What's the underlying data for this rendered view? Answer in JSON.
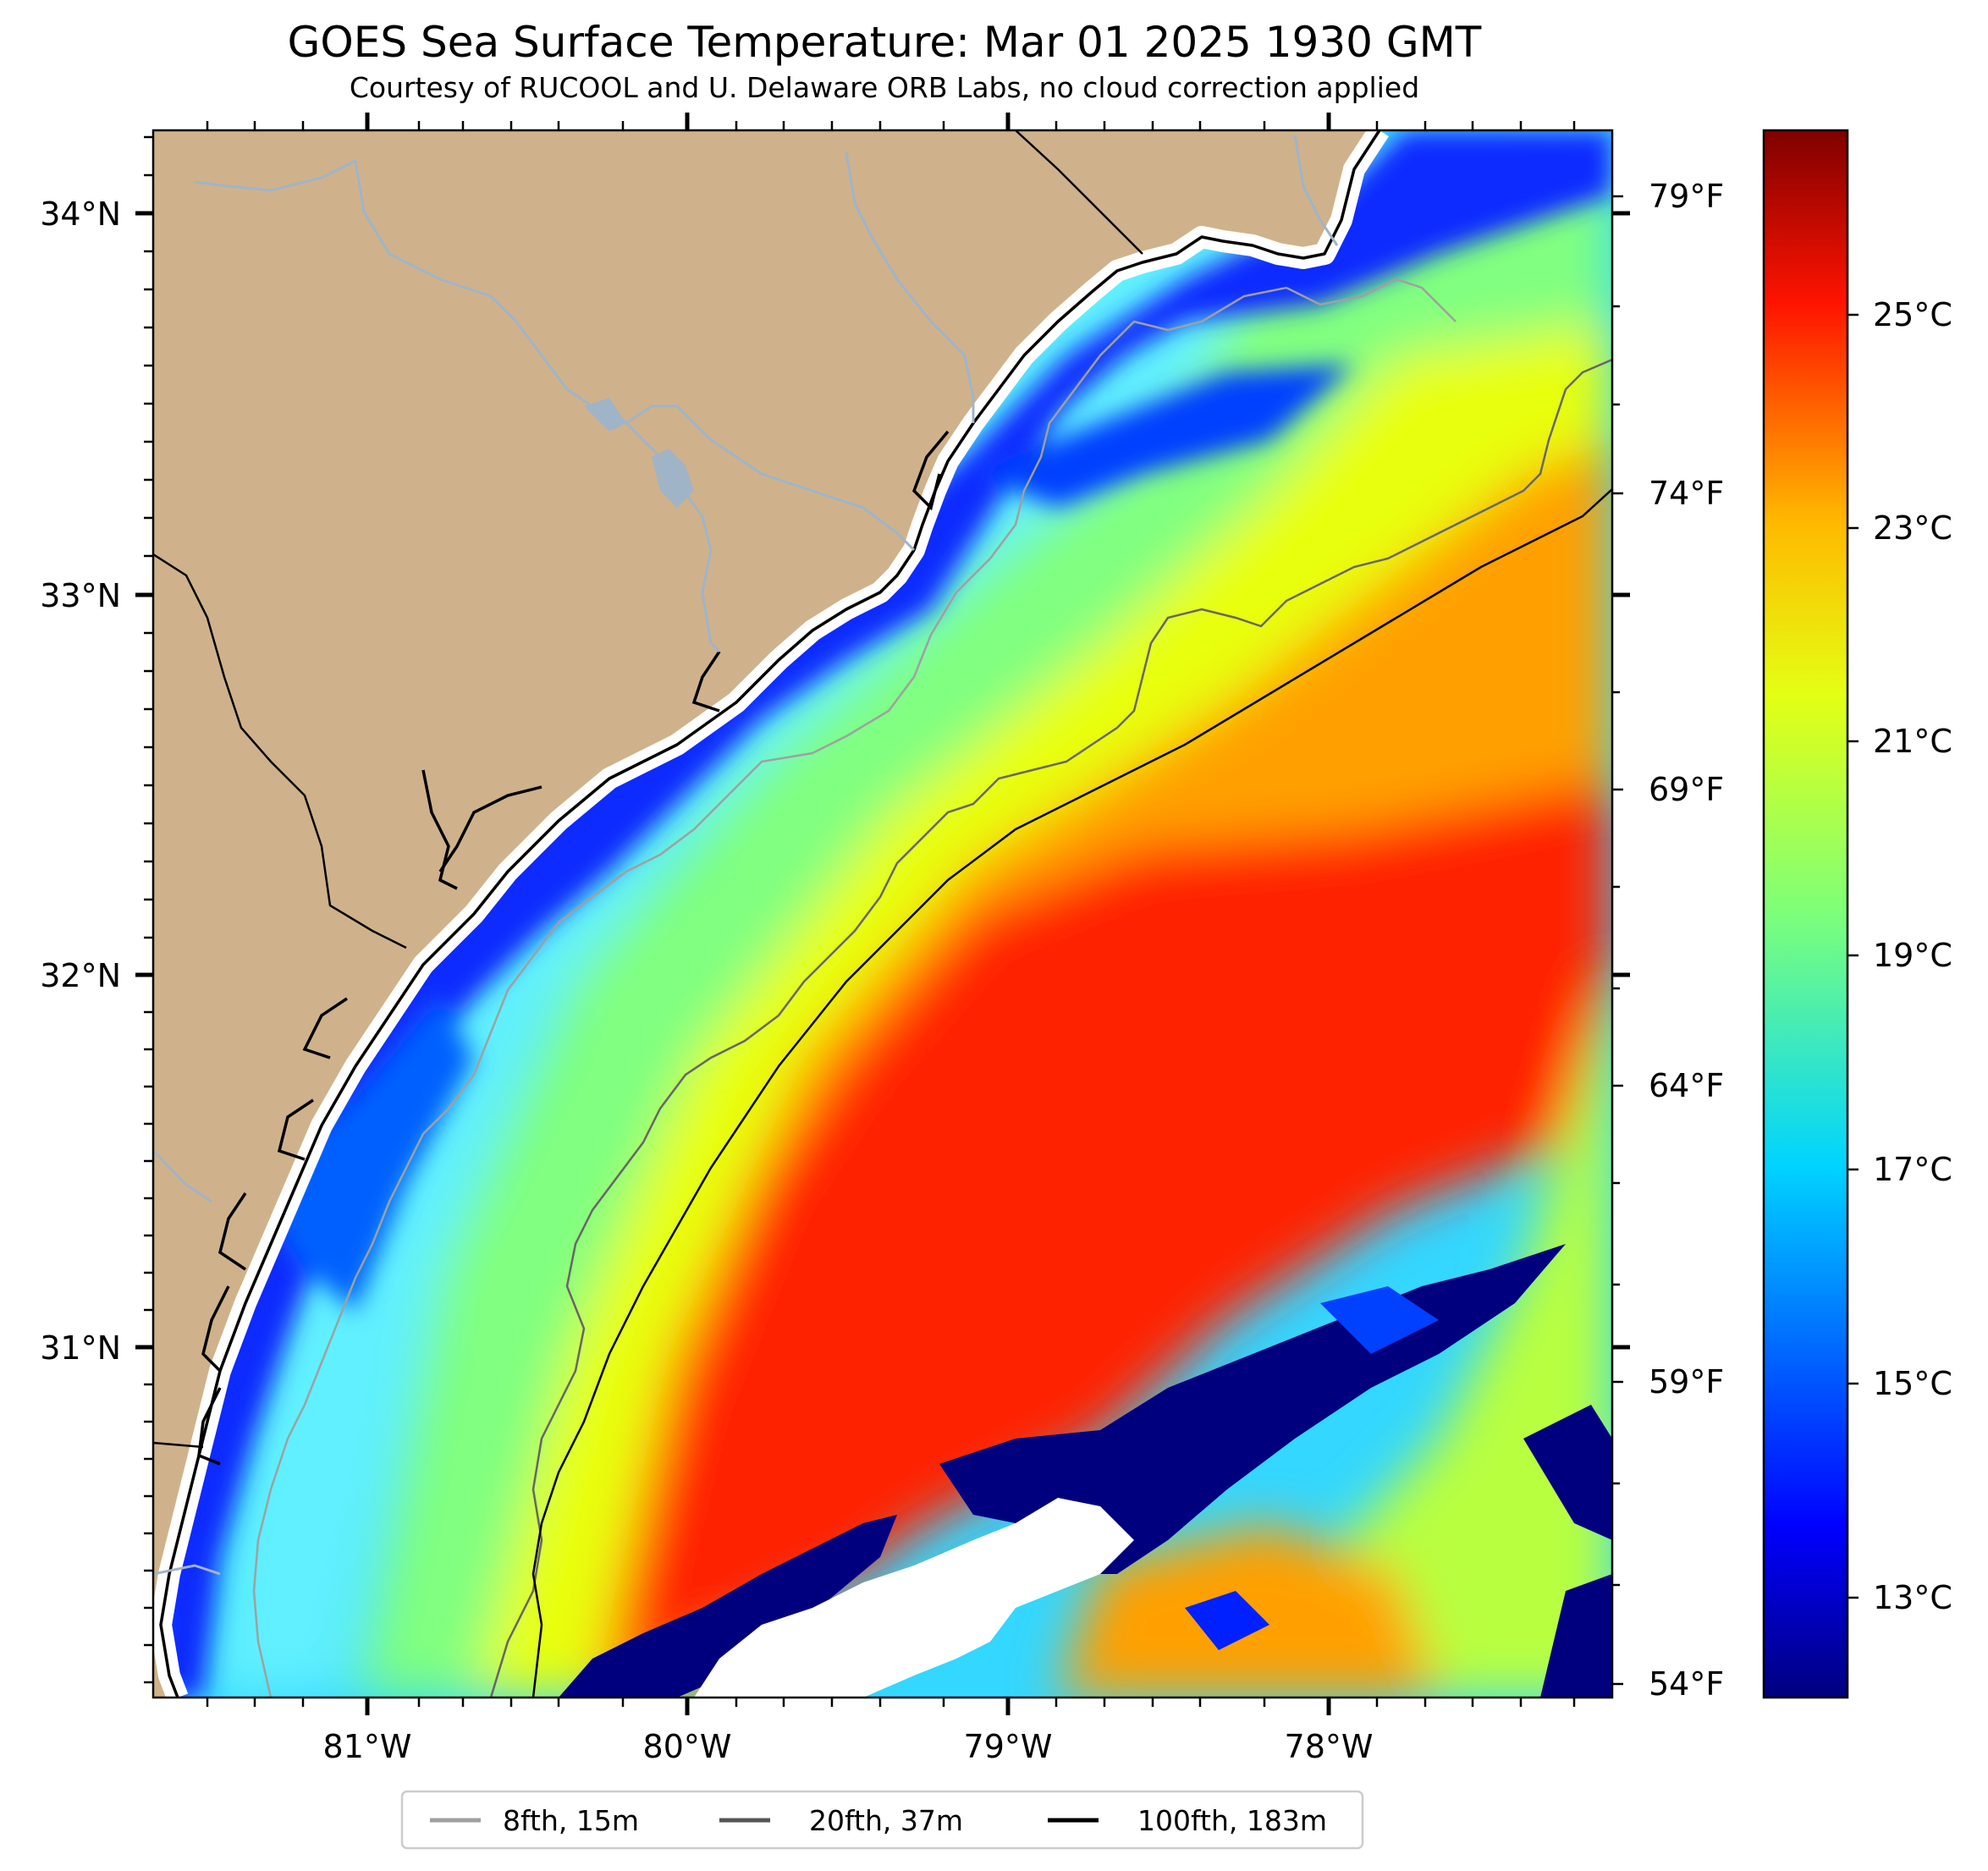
{
  "title": "GOES Sea Surface Temperature: Mar 01 2025 1930 GMT",
  "subtitle": "Courtesy of RUCOOL and U. Delaware ORB Labs, no cloud correction applied",
  "map": {
    "lat_labels": [
      "34°N",
      "33°N",
      "32°N",
      "31°N"
    ],
    "lon_labels": [
      "81°W",
      "80°W",
      "79°W",
      "78°W"
    ],
    "fahrenheit_labels": [
      "79°F",
      "74°F",
      "69°F",
      "64°F",
      "59°F",
      "54°F"
    ],
    "land_color": "#cfb28b",
    "no_data_color": "#ffffff",
    "river_color": "#a0b4c8"
  },
  "colorbar": {
    "labels": [
      "25°C",
      "23°C",
      "21°C",
      "19°C",
      "17°C",
      "15°C",
      "13°C"
    ],
    "colormap": "jet",
    "min_c": 12.1,
    "max_c": 27.3
  },
  "legend": {
    "items": [
      {
        "label": "8fth, 15m",
        "color": "#a0a0a0"
      },
      {
        "label": "20fth, 37m",
        "color": "#555555"
      },
      {
        "label": "100fth, 183m",
        "color": "#000000"
      }
    ]
  }
}
